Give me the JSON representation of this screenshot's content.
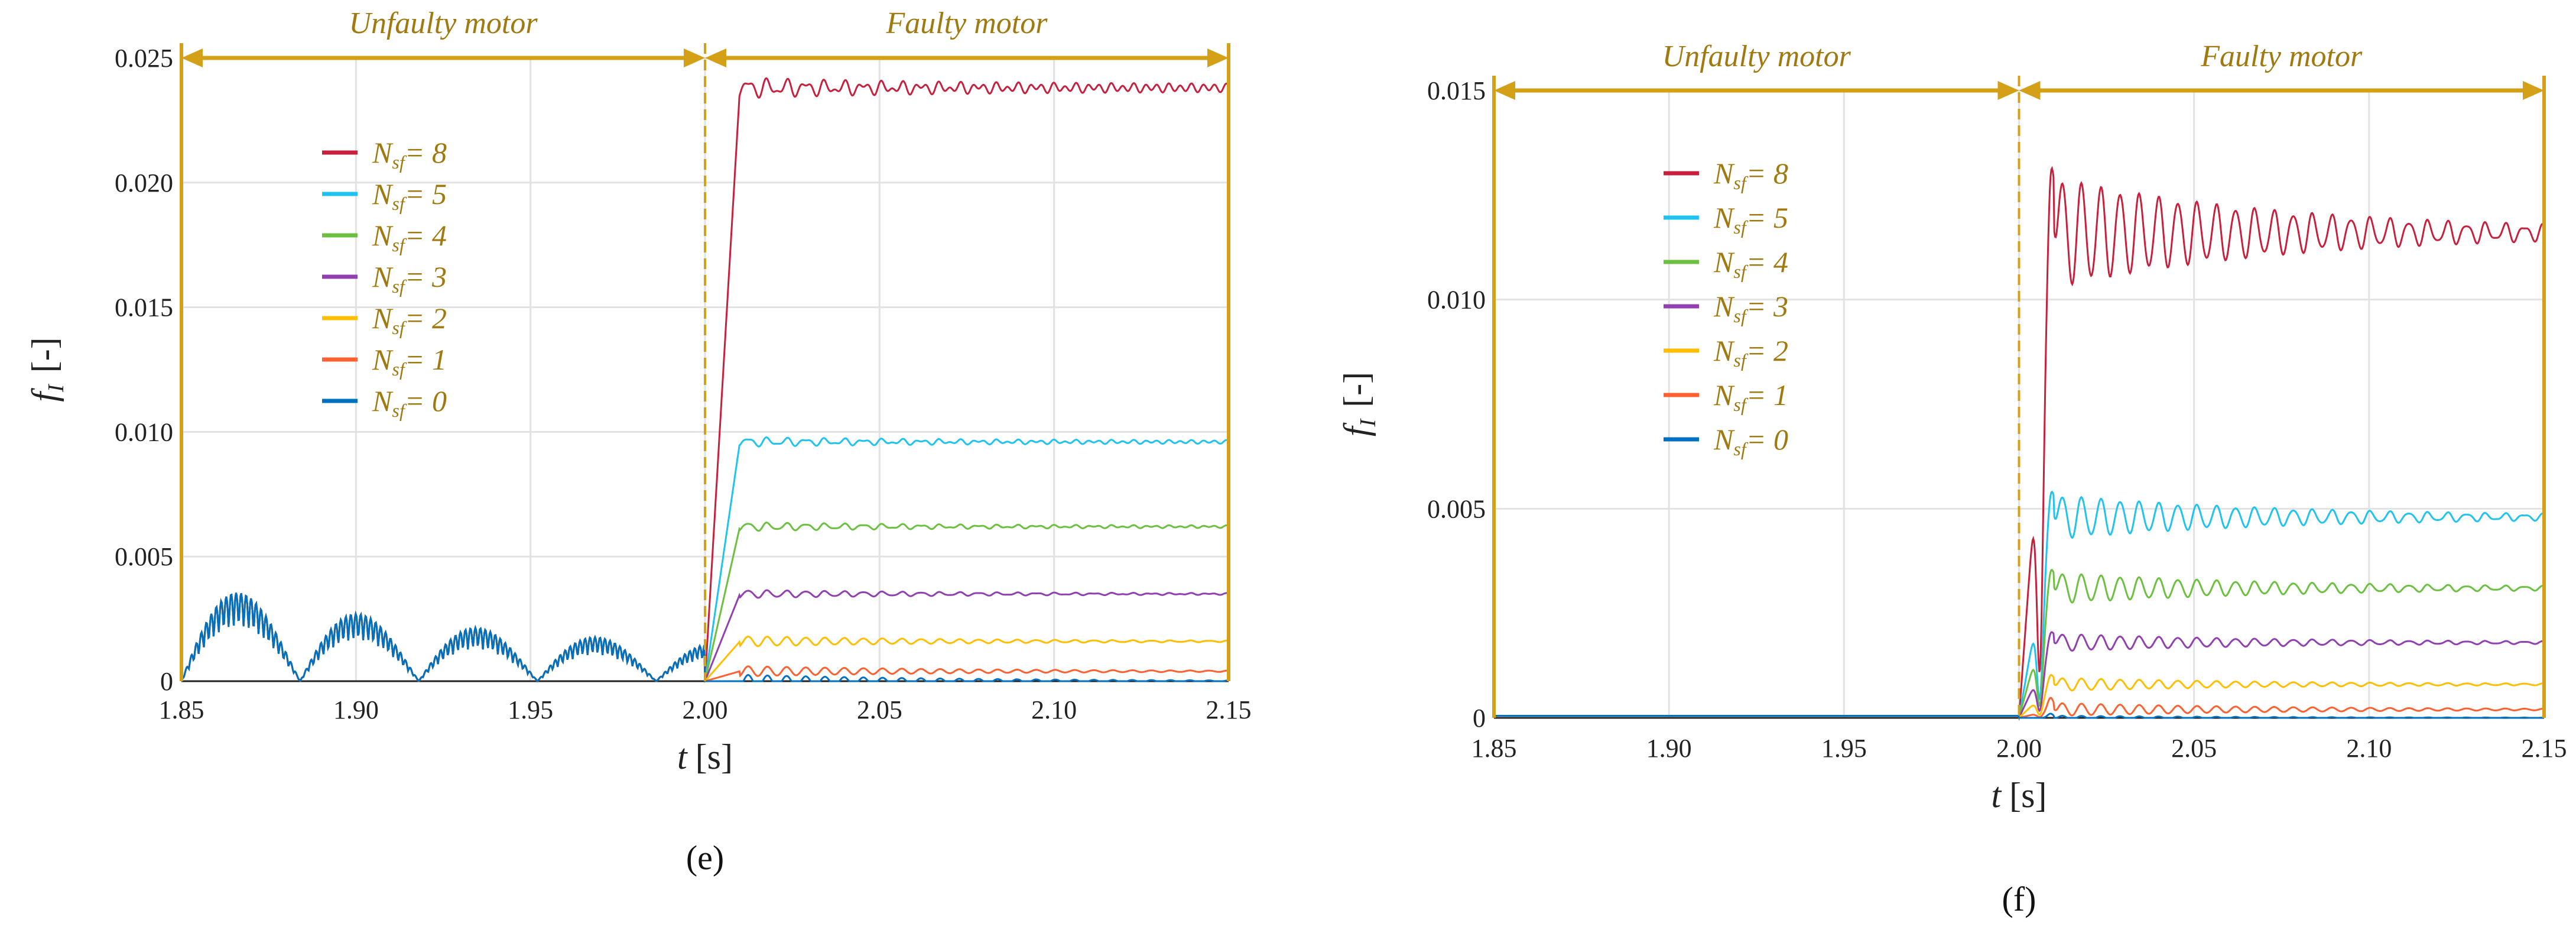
{
  "chart_data": [
    {
      "type": "line",
      "panel_label": "e",
      "caption": "(e)",
      "xlabel_var": "t",
      "xlabel_unit": "[s]",
      "ylabel_var": "f",
      "ylabel_sub": "I",
      "ylabel_unit": "[-]",
      "xlim": [
        1.85,
        2.15
      ],
      "ylim": [
        0,
        0.025
      ],
      "xticks": [
        "1.85",
        "1.90",
        "1.95",
        "2.00",
        "2.05",
        "2.10",
        "2.15"
      ],
      "yticks": [
        "0",
        "0.005",
        "0.010",
        "0.015",
        "0.020",
        "0.025"
      ],
      "grid": true,
      "legend_placement": "upper-left",
      "annotations": {
        "left": "Unfaulty motor",
        "right": "Faulty motor",
        "fault_time": 2.0
      },
      "unfaulty_peak": 0.0041,
      "series": [
        {
          "name": "N",
          "sub": "sf",
          "label": "= 8",
          "color": "#c8203c",
          "steady": 0.0238,
          "peak": 0.0244
        },
        {
          "name": "N",
          "sub": "sf",
          "label": "= 5",
          "color": "#1ec3ef",
          "steady": 0.0096,
          "peak": 0.0099
        },
        {
          "name": "N",
          "sub": "sf",
          "label": "= 4",
          "color": "#6cc040",
          "steady": 0.0062,
          "peak": 0.0065
        },
        {
          "name": "N",
          "sub": "sf",
          "label": "= 3",
          "color": "#9040b0",
          "steady": 0.0035,
          "peak": 0.0038
        },
        {
          "name": "N",
          "sub": "sf",
          "label": "= 2",
          "color": "#ffbf00",
          "steady": 0.0016,
          "peak": 0.002
        },
        {
          "name": "N",
          "sub": "sf",
          "label": "= 1",
          "color": "#ff6030",
          "steady": 0.0004,
          "peak": 0.0008
        },
        {
          "name": "N",
          "sub": "sf",
          "label": "= 0",
          "color": "#0070c0",
          "steady": 0.0,
          "peak": 0.0005
        }
      ]
    },
    {
      "type": "line",
      "panel_label": "f",
      "caption": "(f)",
      "xlabel_var": "t",
      "xlabel_unit": "[s]",
      "ylabel_var": "f",
      "ylabel_sub": "I",
      "ylabel_unit": "[-]",
      "xlim": [
        1.85,
        2.15
      ],
      "ylim": [
        0,
        0.015
      ],
      "xticks": [
        "1.85",
        "1.90",
        "1.95",
        "2.00",
        "2.05",
        "2.10",
        "2.15"
      ],
      "yticks": [
        "0",
        "0.005",
        "0.010",
        "0.015"
      ],
      "grid": true,
      "legend_placement": "upper-left",
      "annotations": {
        "left": "Unfaulty motor",
        "right": "Faulty motor",
        "fault_time": 2.0
      },
      "unfaulty_peak": 0.0,
      "series": [
        {
          "name": "N",
          "sub": "sf",
          "label": "= 8",
          "color": "#c8203c",
          "steady": 0.0116,
          "peak": 0.0141
        },
        {
          "name": "N",
          "sub": "sf",
          "label": "= 5",
          "color": "#1ec3ef",
          "steady": 0.0048,
          "peak": 0.0058
        },
        {
          "name": "N",
          "sub": "sf",
          "label": "= 4",
          "color": "#6cc040",
          "steady": 0.0031,
          "peak": 0.0038
        },
        {
          "name": "N",
          "sub": "sf",
          "label": "= 3",
          "color": "#9040b0",
          "steady": 0.0018,
          "peak": 0.0022
        },
        {
          "name": "N",
          "sub": "sf",
          "label": "= 2",
          "color": "#ffbf00",
          "steady": 0.0008,
          "peak": 0.0011
        },
        {
          "name": "N",
          "sub": "sf",
          "label": "= 1",
          "color": "#ff6030",
          "steady": 0.0002,
          "peak": 0.0005
        },
        {
          "name": "N",
          "sub": "sf",
          "label": "= 0",
          "color": "#0070c0",
          "steady": 0.0,
          "peak": 0.0001
        }
      ]
    }
  ],
  "colors": {
    "annotation": "#d4a017",
    "annotation_text": "#a07a10"
  }
}
